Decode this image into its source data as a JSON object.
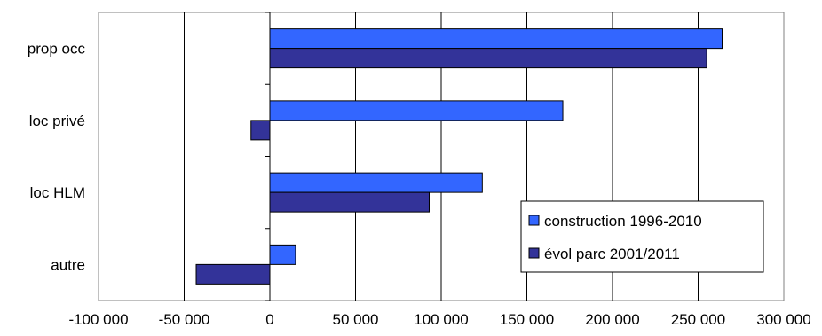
{
  "chart_data": {
    "type": "bar",
    "orientation": "horizontal",
    "categories": [
      "prop occ",
      "loc privé",
      "loc HLM",
      "autre"
    ],
    "series": [
      {
        "name": "construction 1996-2010",
        "values": [
          264000,
          171000,
          124000,
          15000
        ],
        "color": "#3366FF"
      },
      {
        "name": "évol parc 2001/2011",
        "values": [
          255000,
          -11000,
          93000,
          -43000
        ],
        "color": "#333399"
      }
    ],
    "xlim": [
      -100000,
      300000
    ],
    "xticks": [
      -100000,
      -50000,
      0,
      50000,
      100000,
      150000,
      200000,
      250000,
      300000
    ],
    "xtick_labels": [
      "-100 000",
      "-50 000",
      "0",
      "50 000",
      "100 000",
      "150 000",
      "200 000",
      "250 000",
      "300 000"
    ],
    "title": "",
    "xlabel": "",
    "ylabel": "",
    "grid": "vertical",
    "legend_position": "bottom-right",
    "colors": {
      "plot_border": "#808080",
      "gridline": "#000000",
      "background": "#FFFFFF"
    }
  }
}
